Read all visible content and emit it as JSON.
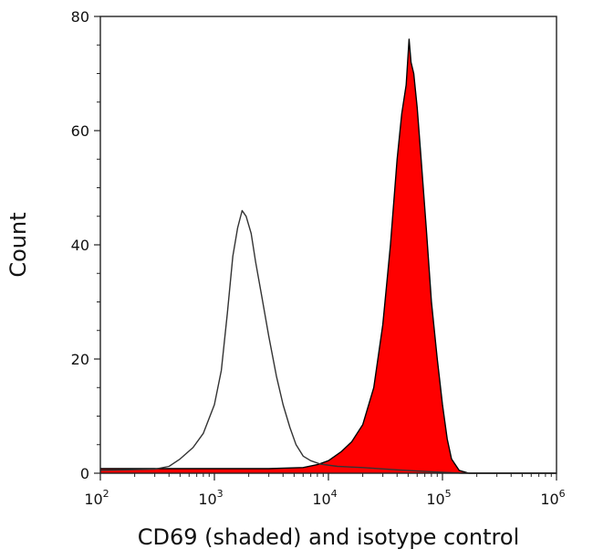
{
  "chart_data": {
    "type": "area",
    "title": "",
    "xlabel": "CD69 (shaded) and isotype control",
    "ylabel": "Count",
    "x_scale": "log10",
    "xlim": [
      100,
      1000000
    ],
    "ylim": [
      0,
      80
    ],
    "x_ticks": [
      {
        "value": 100,
        "base": "10",
        "exp": "2"
      },
      {
        "value": 1000,
        "base": "10",
        "exp": "3"
      },
      {
        "value": 10000,
        "base": "10",
        "exp": "4"
      },
      {
        "value": 100000,
        "base": "10",
        "exp": "5"
      },
      {
        "value": 1000000,
        "base": "10",
        "exp": "6"
      }
    ],
    "y_ticks": [
      0,
      20,
      40,
      60,
      80
    ],
    "grid": false,
    "legend": "none",
    "series": [
      {
        "style": "filled",
        "color": "#ff0000",
        "outline": "#000000",
        "points": [
          [
            100,
            0.8
          ],
          [
            300,
            0.8
          ],
          [
            1000,
            0.8
          ],
          [
            3000,
            0.8
          ],
          [
            6000,
            1.0
          ],
          [
            8000,
            1.5
          ],
          [
            10000,
            2.2
          ],
          [
            13000,
            3.8
          ],
          [
            16000,
            5.5
          ],
          [
            20000,
            8.5
          ],
          [
            25000,
            15
          ],
          [
            30000,
            26
          ],
          [
            35000,
            40
          ],
          [
            40000,
            55
          ],
          [
            44000,
            63
          ],
          [
            48000,
            68
          ],
          [
            51000,
            76
          ],
          [
            53000,
            72
          ],
          [
            56000,
            70
          ],
          [
            60000,
            64
          ],
          [
            65000,
            55
          ],
          [
            72000,
            43
          ],
          [
            80000,
            30
          ],
          [
            90000,
            20
          ],
          [
            100000,
            12
          ],
          [
            110000,
            6
          ],
          [
            120000,
            2.5
          ],
          [
            140000,
            0.5
          ],
          [
            170000,
            0
          ],
          [
            1000000,
            0
          ]
        ]
      },
      {
        "style": "line",
        "color": "#333333",
        "points": [
          [
            100,
            0.5
          ],
          [
            300,
            0.7
          ],
          [
            400,
            1.2
          ],
          [
            500,
            2.5
          ],
          [
            650,
            4.5
          ],
          [
            800,
            7
          ],
          [
            1000,
            12
          ],
          [
            1150,
            18
          ],
          [
            1300,
            28
          ],
          [
            1450,
            38
          ],
          [
            1600,
            43
          ],
          [
            1750,
            46
          ],
          [
            1900,
            45
          ],
          [
            2100,
            42
          ],
          [
            2300,
            37
          ],
          [
            2600,
            31
          ],
          [
            3000,
            24
          ],
          [
            3500,
            17
          ],
          [
            4000,
            12
          ],
          [
            4600,
            8
          ],
          [
            5200,
            5
          ],
          [
            6000,
            3
          ],
          [
            7000,
            2.2
          ],
          [
            8500,
            1.6
          ],
          [
            12000,
            1.2
          ],
          [
            20000,
            1.0
          ],
          [
            40000,
            0.6
          ],
          [
            70000,
            0.3
          ],
          [
            150000,
            0
          ],
          [
            1000000,
            0
          ]
        ]
      }
    ]
  }
}
